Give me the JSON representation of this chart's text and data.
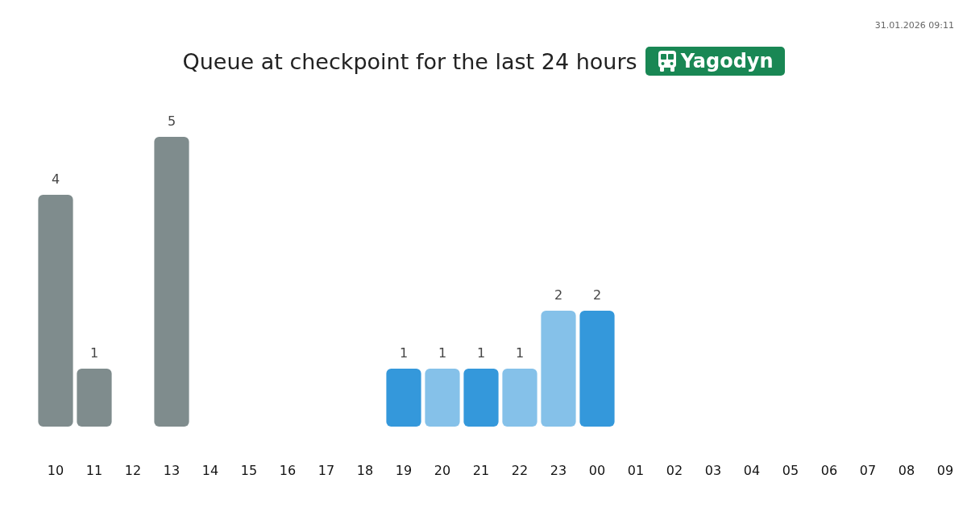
{
  "chart_data": {
    "type": "bar",
    "title": "Queue at checkpoint for the last 24 hours",
    "subtitle": "Yagodyn",
    "annotations": [
      "31.01.2026 09:11"
    ],
    "categories": [
      "10",
      "11",
      "12",
      "13",
      "14",
      "15",
      "16",
      "17",
      "18",
      "19",
      "20",
      "21",
      "22",
      "23",
      "00",
      "01",
      "02",
      "03",
      "04",
      "05",
      "06",
      "07",
      "08",
      "09"
    ],
    "values": [
      4,
      1,
      null,
      5,
      null,
      null,
      null,
      null,
      null,
      1,
      1,
      1,
      1,
      2,
      2,
      null,
      null,
      null,
      null,
      null,
      null,
      null,
      null,
      null
    ],
    "colors": [
      "#7f8c8d",
      "#7f8c8d",
      null,
      "#7f8c8d",
      null,
      null,
      null,
      null,
      null,
      "#3498db",
      "#85c1e9",
      "#3498db",
      "#85c1e9",
      "#85c1e9",
      "#3498db",
      null,
      null,
      null,
      null,
      null,
      null,
      null,
      null,
      null
    ],
    "data_labels": true
  }
}
